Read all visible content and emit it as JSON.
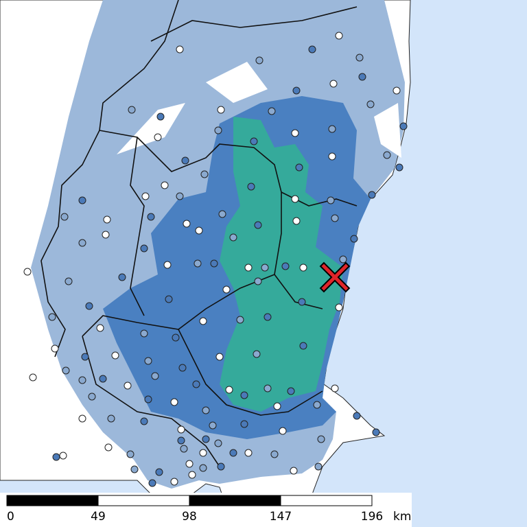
{
  "scale_bar": {
    "ticks": [
      "0",
      "49",
      "98",
      "147",
      "196"
    ],
    "unit": "km"
  }
}
